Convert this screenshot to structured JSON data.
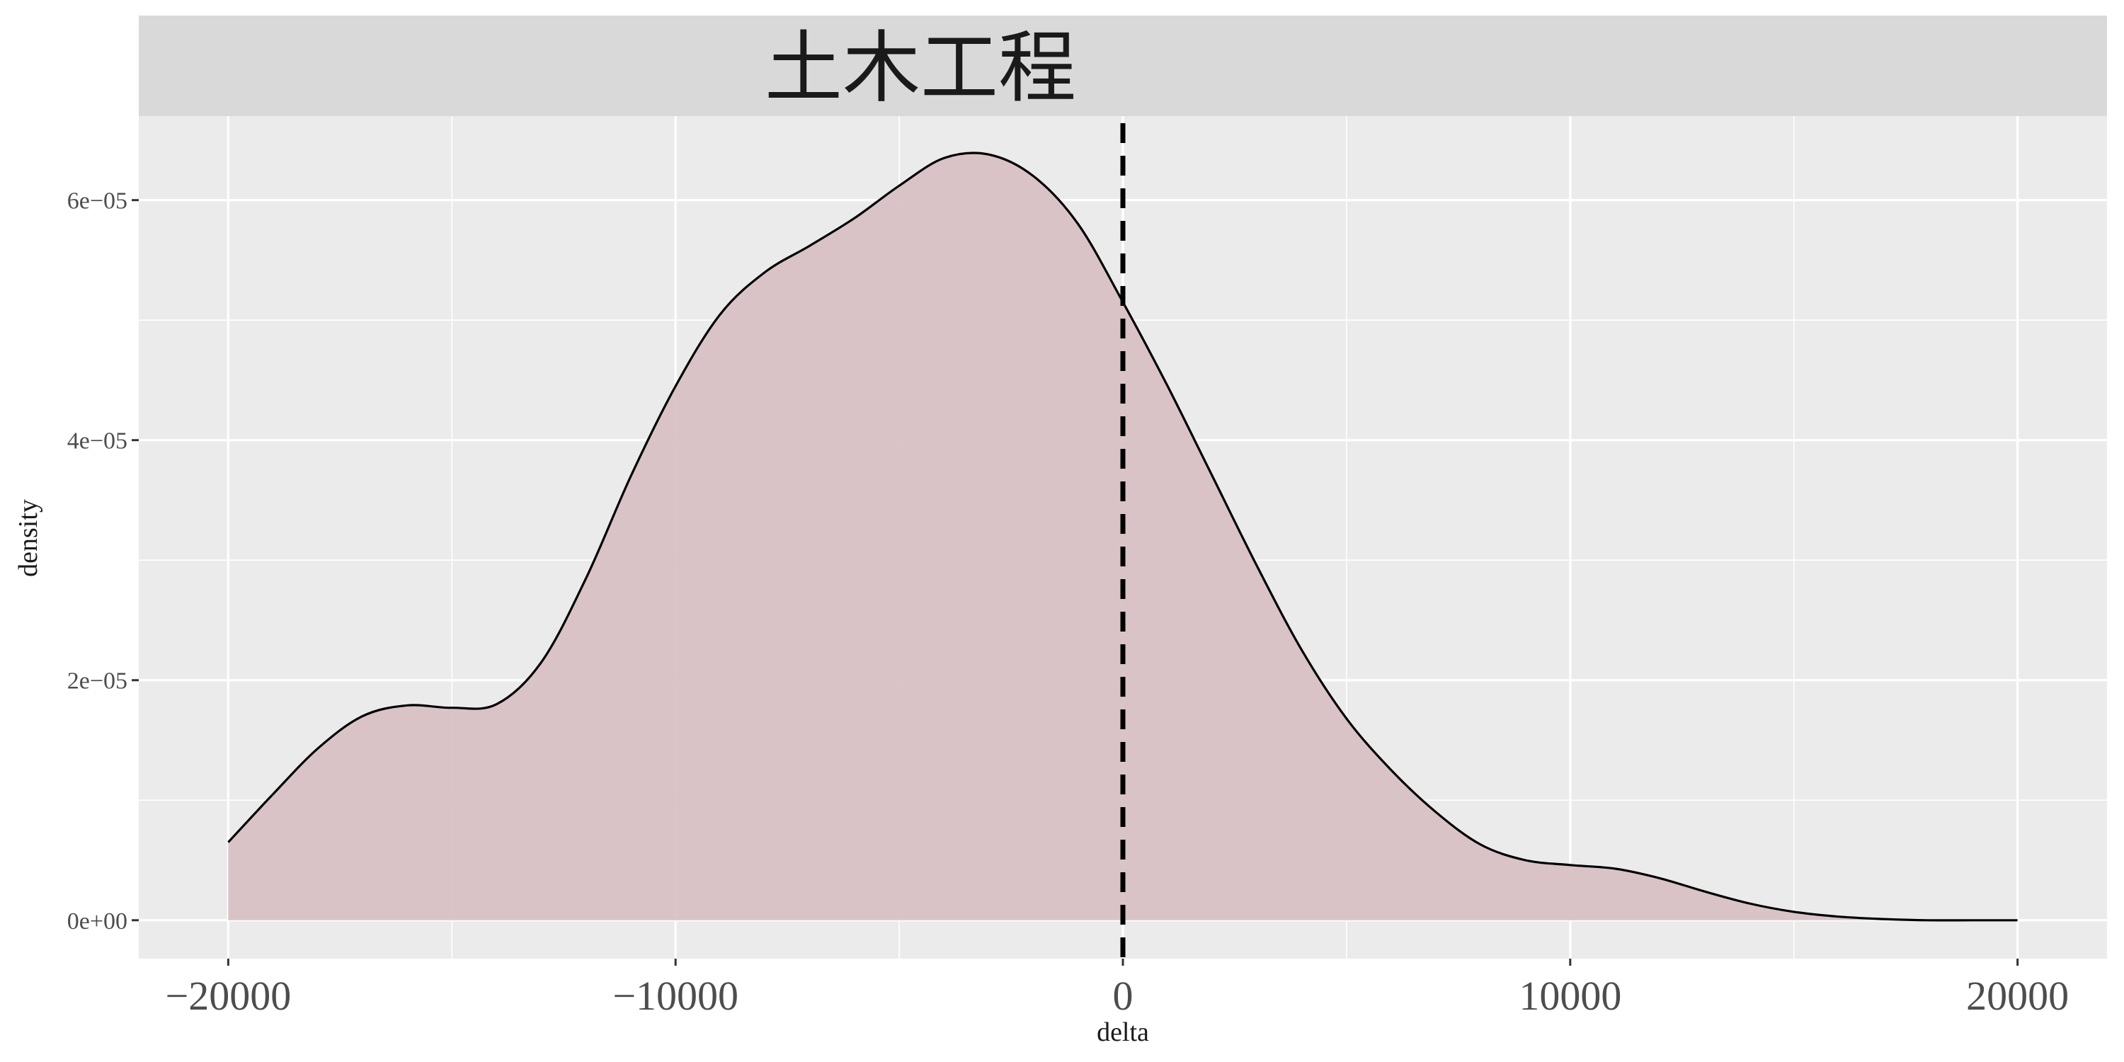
{
  "chart_data": {
    "type": "area",
    "facet_title": "土木工程",
    "xlabel": "delta",
    "ylabel": "density",
    "xlim": [
      -22000,
      22000
    ],
    "ylim": [
      -3.2e-06,
      6.7e-05
    ],
    "x_ticks": [
      -20000,
      -10000,
      0,
      10000,
      20000
    ],
    "x_tick_labels": [
      "−20000",
      "−10000",
      "0",
      "10000",
      "20000"
    ],
    "y_ticks": [
      0,
      2e-05,
      4e-05,
      6e-05
    ],
    "y_tick_labels": [
      "0e+00",
      "2e−05",
      "4e−05",
      "6e−05"
    ],
    "reference_line": {
      "x": 0,
      "style": "dashed"
    },
    "grid": true,
    "series": [
      {
        "x": [
          -20000,
          -19000,
          -18000,
          -17000,
          -16000,
          -15000,
          -14000,
          -13000,
          -12000,
          -11000,
          -10000,
          -9000,
          -8000,
          -7000,
          -6000,
          -5000,
          -4000,
          -3000,
          -2000,
          -1000,
          0,
          1000,
          2000,
          3000,
          4000,
          5000,
          6000,
          7000,
          8000,
          9000,
          10000,
          11000,
          12000,
          13000,
          14000,
          15000,
          16000,
          17000,
          18000,
          19000,
          20000
        ],
        "y": [
          6.5e-06,
          1.05e-05,
          1.43e-05,
          1.7e-05,
          1.79e-05,
          1.77e-05,
          1.8e-05,
          2.15e-05,
          2.85e-05,
          3.7e-05,
          4.45e-05,
          5.05e-05,
          5.4e-05,
          5.62e-05,
          5.85e-05,
          6.12e-05,
          6.35e-05,
          6.38e-05,
          6.2e-05,
          5.8e-05,
          5.15e-05,
          4.45e-05,
          3.7e-05,
          2.95e-05,
          2.25e-05,
          1.68e-05,
          1.25e-05,
          9e-06,
          6.3e-06,
          5e-06,
          4.6e-06,
          4.3e-06,
          3.5e-06,
          2.4e-06,
          1.4e-06,
          7e-07,
          3e-07,
          1e-07,
          0.0,
          0.0,
          0.0
        ]
      }
    ],
    "colors": {
      "fill": "#d8c1c5",
      "line": "#000000",
      "panel_bg": "#ebebeb",
      "strip_bg": "#d9d9d9",
      "grid": "#ffffff"
    }
  }
}
